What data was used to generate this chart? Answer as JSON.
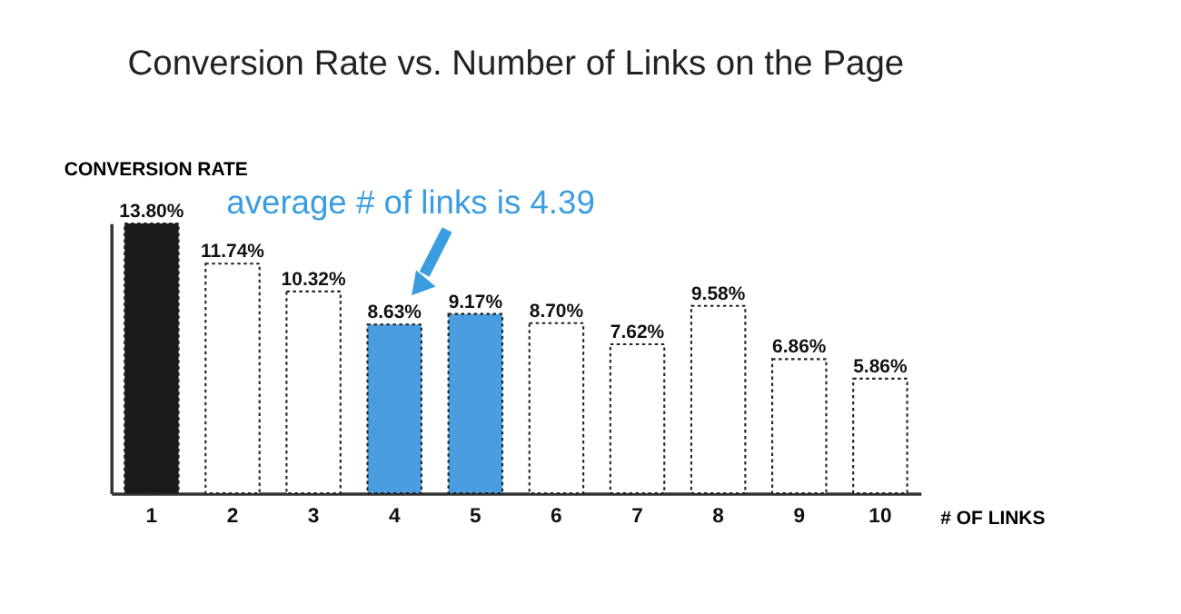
{
  "chart_data": {
    "type": "bar",
    "title": "Conversion Rate vs. Number of Links on the Page",
    "ylabel": "CONVERSION RATE",
    "xlabel": "# OF LINKS",
    "categories": [
      "1",
      "2",
      "3",
      "4",
      "5",
      "6",
      "7",
      "8",
      "9",
      "10"
    ],
    "values": [
      13.8,
      11.74,
      10.32,
      8.63,
      9.17,
      8.7,
      7.62,
      9.58,
      6.86,
      5.86
    ],
    "value_labels": [
      "13.80%",
      "11.74%",
      "10.32%",
      "8.63%",
      "9.17%",
      "8.70%",
      "7.62%",
      "9.58%",
      "6.86%",
      "5.86%"
    ],
    "colors": [
      "#1a1a1a",
      "#ffffff",
      "#ffffff",
      "#4a9de0",
      "#4a9de0",
      "#ffffff",
      "#ffffff",
      "#ffffff",
      "#ffffff",
      "#ffffff"
    ],
    "annotations": [
      "average # of links is 4.39"
    ],
    "grid": false
  }
}
